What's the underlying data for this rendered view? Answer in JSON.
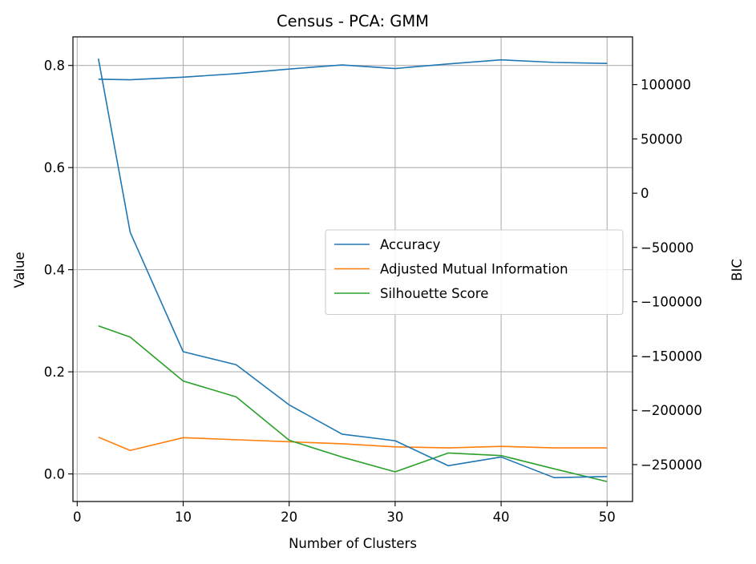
{
  "chart_data": {
    "type": "line",
    "title": "Census - PCA: GMM",
    "xlabel": "Number of Clusters",
    "ylabel": "Value",
    "y2label": "BIC",
    "xlim": [
      -0.4,
      52.4
    ],
    "ylim": [
      -0.054,
      0.856
    ],
    "y2lim": [
      -284000,
      144000
    ],
    "x_ticks": [
      0,
      10,
      20,
      30,
      40,
      50
    ],
    "y_ticks": [
      0.0,
      0.2,
      0.4,
      0.6,
      0.8
    ],
    "y2_ticks": [
      100000,
      50000,
      0,
      -50000,
      -100000,
      -150000,
      -200000,
      -250000
    ],
    "y2_tick_labels": [
      "100000",
      "50000",
      "0",
      "−50000",
      "−100000",
      "−150000",
      "−200000",
      "−250000"
    ],
    "grid": true,
    "legend_position": "center-right",
    "series": [
      {
        "name": "Accuracy",
        "axis": "left",
        "color": "#1f77b4",
        "x": [
          2,
          5,
          10,
          15,
          20,
          25,
          30,
          35,
          40,
          45,
          50
        ],
        "y": [
          0.773,
          0.772,
          0.777,
          0.784,
          0.793,
          0.801,
          0.794,
          0.803,
          0.811,
          0.806,
          0.804
        ]
      },
      {
        "name": "Adjusted Mutual Information",
        "axis": "left",
        "color": "#ff7f0e",
        "x": [
          2,
          5,
          10,
          15,
          20,
          25,
          30,
          35,
          40,
          45,
          50
        ],
        "y": [
          0.072,
          0.046,
          0.071,
          0.067,
          0.063,
          0.059,
          0.053,
          0.051,
          0.054,
          0.051,
          0.051
        ]
      },
      {
        "name": "Silhouette Score",
        "axis": "left",
        "color": "#2ca02c",
        "x": [
          2,
          5,
          10,
          15,
          20,
          25,
          30,
          35,
          40,
          45,
          50
        ],
        "y": [
          0.29,
          0.268,
          0.182,
          0.151,
          0.066,
          0.033,
          0.004,
          0.041,
          0.036,
          0.01,
          -0.015
        ]
      },
      {
        "axis": "right",
        "color": "#1f77b4",
        "x": [
          2,
          5,
          10,
          15,
          20,
          25,
          30,
          35,
          40,
          45,
          50
        ],
        "y": [
          124000,
          -36000,
          -146000,
          -158000,
          -195000,
          -222000,
          -228000,
          -251000,
          -243000,
          -262000,
          -261000
        ]
      }
    ]
  }
}
